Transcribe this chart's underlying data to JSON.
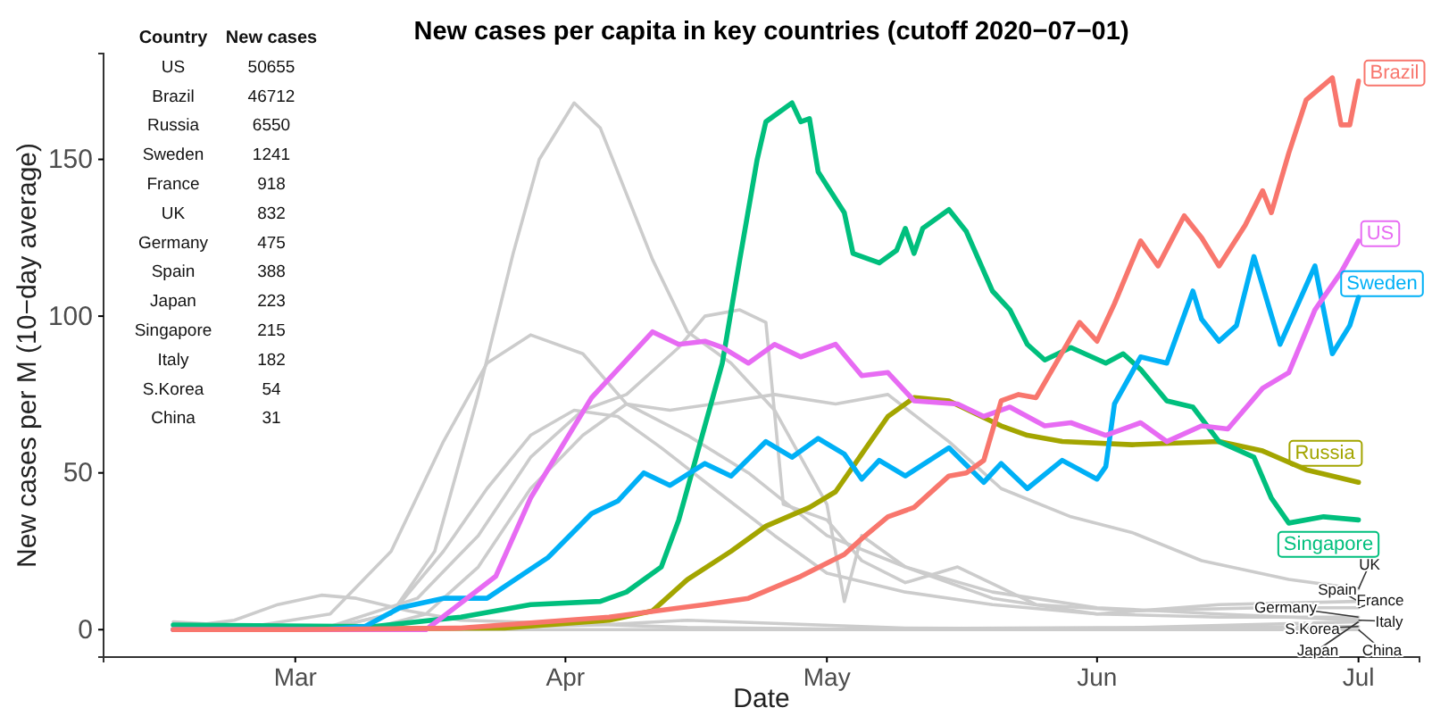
{
  "chart_data": {
    "type": "line",
    "title": "New cases per capita in key countries (cutoff 2020−07−01)",
    "xlabel": "Date",
    "ylabel": "New cases per M (10−day average)",
    "xlim": [
      "2020-02-08",
      "2020-07-08"
    ],
    "xticks": [
      {
        "value": "2020-03-01",
        "label": "Mar"
      },
      {
        "value": "2020-04-01",
        "label": "Apr"
      },
      {
        "value": "2020-05-01",
        "label": "May"
      },
      {
        "value": "2020-06-01",
        "label": "Jun"
      },
      {
        "value": "2020-07-01",
        "label": "Jul"
      }
    ],
    "ylim": [
      -8.75,
      183.75
    ],
    "yticks": [
      0,
      50,
      100,
      150
    ],
    "grid": false,
    "annotations": [
      "Country",
      "New cases",
      "US",
      "50655",
      "Brazil",
      "46712",
      "Russia",
      "6550",
      "Sweden",
      "1241",
      "France",
      "918",
      "UK",
      "832",
      "Germany",
      "475",
      "Spain",
      "388",
      "Japan",
      "223",
      "Singapore",
      "215",
      "Italy",
      "182",
      "S.Korea",
      "54",
      "China",
      "31"
    ],
    "series": [
      {
        "name": "Spain",
        "color": "#cccccc",
        "x": [
          "2020-02-16",
          "2020-03-05",
          "2020-03-12",
          "2020-03-17",
          "2020-03-22",
          "2020-03-26",
          "2020-03-29",
          "2020-04-02",
          "2020-04-05",
          "2020-04-08",
          "2020-04-11",
          "2020-04-15",
          "2020-04-20",
          "2020-04-25",
          "2020-05-01",
          "2020-05-03",
          "2020-05-05",
          "2020-05-10",
          "2020-05-20",
          "2020-06-01",
          "2020-06-15",
          "2020-07-01"
        ],
        "values": [
          0,
          0.5,
          5,
          25,
          75,
          120,
          150,
          168,
          160,
          139,
          118,
          95,
          85,
          70,
          40,
          9,
          30,
          20,
          10,
          5,
          8,
          9
        ]
      },
      {
        "name": "Italy",
        "color": "#cccccc",
        "x": [
          "2020-02-16",
          "2020-02-25",
          "2020-03-05",
          "2020-03-12",
          "2020-03-18",
          "2020-03-23",
          "2020-03-28",
          "2020-04-03",
          "2020-04-08",
          "2020-04-15",
          "2020-04-22",
          "2020-05-01",
          "2020-05-10",
          "2020-05-20",
          "2020-06-01",
          "2020-06-15",
          "2020-07-01"
        ],
        "values": [
          0,
          1,
          5,
          25,
          60,
          85,
          94,
          88,
          72,
          62,
          50,
          30,
          20,
          12,
          7,
          5,
          3
        ]
      },
      {
        "name": "France",
        "color": "#cccccc",
        "x": [
          "2020-02-16",
          "2020-03-05",
          "2020-03-15",
          "2020-03-22",
          "2020-03-28",
          "2020-04-03",
          "2020-04-08",
          "2020-04-12",
          "2020-04-14",
          "2020-04-17",
          "2020-04-21",
          "2020-04-24",
          "2020-04-26",
          "2020-05-01",
          "2020-05-05",
          "2020-05-10",
          "2020-05-16",
          "2020-05-25",
          "2020-06-05",
          "2020-06-20",
          "2020-07-01"
        ],
        "values": [
          0,
          1,
          10,
          30,
          55,
          70,
          75,
          85,
          90,
          100,
          102,
          98,
          40,
          35,
          22,
          15,
          20,
          8,
          6,
          7,
          7
        ]
      },
      {
        "name": "Germany",
        "color": "#cccccc",
        "x": [
          "2020-02-16",
          "2020-03-05",
          "2020-03-12",
          "2020-03-18",
          "2020-03-23",
          "2020-03-28",
          "2020-04-02",
          "2020-04-07",
          "2020-04-12",
          "2020-04-18",
          "2020-04-25",
          "2020-05-01",
          "2020-05-10",
          "2020-05-20",
          "2020-06-01",
          "2020-06-15",
          "2020-07-01"
        ],
        "values": [
          0,
          0.5,
          5,
          25,
          45,
          62,
          70,
          68,
          58,
          45,
          30,
          18,
          12,
          8,
          5,
          4,
          4
        ]
      },
      {
        "name": "UK",
        "color": "#cccccc",
        "x": [
          "2020-02-16",
          "2020-03-10",
          "2020-03-16",
          "2020-03-22",
          "2020-03-28",
          "2020-04-03",
          "2020-04-08",
          "2020-04-13",
          "2020-04-18",
          "2020-04-25",
          "2020-05-02",
          "2020-05-08",
          "2020-05-15",
          "2020-05-21",
          "2020-05-29",
          "2020-06-05",
          "2020-06-13",
          "2020-06-23",
          "2020-07-01"
        ],
        "values": [
          0,
          0.5,
          5,
          20,
          45,
          62,
          72,
          70,
          72,
          75,
          72,
          75,
          60,
          45,
          36,
          31,
          22,
          16,
          13
        ]
      },
      {
        "name": "S.Korea",
        "color": "#cccccc",
        "x": [
          "2020-02-16",
          "2020-02-23",
          "2020-02-28",
          "2020-03-04",
          "2020-03-08",
          "2020-03-14",
          "2020-03-20",
          "2020-04-01",
          "2020-04-15",
          "2020-05-01",
          "2020-06-01",
          "2020-07-01"
        ],
        "values": [
          0.5,
          3,
          8,
          11,
          10,
          6,
          3,
          2,
          0.7,
          0.2,
          0.6,
          1
        ]
      },
      {
        "name": "Japan",
        "color": "#cccccc",
        "x": [
          "2020-02-16",
          "2020-03-15",
          "2020-04-05",
          "2020-04-15",
          "2020-04-25",
          "2020-05-10",
          "2020-06-01",
          "2020-07-01"
        ],
        "values": [
          0,
          0.3,
          1.5,
          3,
          2,
          0.5,
          0.3,
          2.5
        ]
      },
      {
        "name": "China",
        "color": "#cccccc",
        "x": [
          "2020-02-16",
          "2020-02-22",
          "2020-03-01",
          "2020-03-15",
          "2020-07-01"
        ],
        "values": [
          2.5,
          1.5,
          0.4,
          0,
          0
        ]
      },
      {
        "name": "Russia",
        "color": "#a3a500",
        "x": [
          "2020-02-16",
          "2020-03-25",
          "2020-04-06",
          "2020-04-11",
          "2020-04-15",
          "2020-04-20",
          "2020-04-24",
          "2020-04-29",
          "2020-05-02",
          "2020-05-05",
          "2020-05-08",
          "2020-05-11",
          "2020-05-15",
          "2020-05-21",
          "2020-05-24",
          "2020-05-28",
          "2020-06-05",
          "2020-06-15",
          "2020-06-20",
          "2020-06-25",
          "2020-07-01"
        ],
        "values": [
          0,
          0.5,
          3,
          6,
          16,
          25,
          33,
          39,
          44,
          56,
          68,
          74,
          73,
          65,
          62,
          60,
          59,
          60,
          57,
          51,
          47
        ]
      },
      {
        "name": "Singapore",
        "color": "#00bf7d",
        "x": [
          "2020-02-16",
          "2020-03-10",
          "2020-03-20",
          "2020-03-28",
          "2020-04-05",
          "2020-04-08",
          "2020-04-12",
          "2020-04-14",
          "2020-04-16",
          "2020-04-19",
          "2020-04-21",
          "2020-04-23",
          "2020-04-24",
          "2020-04-27",
          "2020-04-28",
          "2020-04-29",
          "2020-04-30",
          "2020-05-03",
          "2020-05-04",
          "2020-05-07",
          "2020-05-09",
          "2020-05-10",
          "2020-05-11",
          "2020-05-12",
          "2020-05-15",
          "2020-05-17",
          "2020-05-20",
          "2020-05-22",
          "2020-05-24",
          "2020-05-26",
          "2020-05-29",
          "2020-06-02",
          "2020-06-04",
          "2020-06-06",
          "2020-06-09",
          "2020-06-12",
          "2020-06-15",
          "2020-06-19",
          "2020-06-21",
          "2020-06-23",
          "2020-06-27",
          "2020-07-01"
        ],
        "values": [
          1.5,
          1,
          4,
          8,
          9,
          12,
          20,
          35,
          55,
          85,
          118,
          150,
          162,
          168,
          162,
          163,
          146,
          133,
          120,
          117,
          121,
          128,
          120,
          128,
          134,
          127,
          108,
          102,
          91,
          86,
          90,
          85,
          88,
          83,
          73,
          71,
          60,
          55,
          42,
          34,
          36,
          35
        ]
      },
      {
        "name": "Sweden",
        "color": "#00b0f6",
        "x": [
          "2020-02-16",
          "2020-03-04",
          "2020-03-09",
          "2020-03-13",
          "2020-03-18",
          "2020-03-23",
          "2020-03-30",
          "2020-04-04",
          "2020-04-07",
          "2020-04-10",
          "2020-04-13",
          "2020-04-17",
          "2020-04-20",
          "2020-04-24",
          "2020-04-27",
          "2020-04-30",
          "2020-05-03",
          "2020-05-05",
          "2020-05-07",
          "2020-05-10",
          "2020-05-15",
          "2020-05-19",
          "2020-05-21",
          "2020-05-24",
          "2020-05-28",
          "2020-06-01",
          "2020-06-02",
          "2020-06-03",
          "2020-06-06",
          "2020-06-09",
          "2020-06-12",
          "2020-06-13",
          "2020-06-15",
          "2020-06-17",
          "2020-06-19",
          "2020-06-22",
          "2020-06-26",
          "2020-06-28",
          "2020-06-30",
          "2020-07-01"
        ],
        "values": [
          0,
          0,
          1,
          7,
          10,
          10,
          23,
          37,
          41,
          50,
          46,
          53,
          49,
          60,
          55,
          61,
          56,
          48,
          54,
          49,
          58,
          47,
          53,
          45,
          54,
          48,
          52,
          72,
          87,
          85,
          108,
          99,
          92,
          97,
          119,
          91,
          116,
          88,
          97,
          106
        ]
      },
      {
        "name": "US",
        "color": "#e76bf3",
        "x": [
          "2020-02-16",
          "2020-03-16",
          "2020-03-24",
          "2020-03-28",
          "2020-04-04",
          "2020-04-07",
          "2020-04-11",
          "2020-04-14",
          "2020-04-17",
          "2020-04-19",
          "2020-04-22",
          "2020-04-25",
          "2020-04-28",
          "2020-05-02",
          "2020-05-05",
          "2020-05-08",
          "2020-05-11",
          "2020-05-16",
          "2020-05-19",
          "2020-05-22",
          "2020-05-26",
          "2020-05-29",
          "2020-06-02",
          "2020-06-06",
          "2020-06-09",
          "2020-06-13",
          "2020-06-16",
          "2020-06-20",
          "2020-06-23",
          "2020-06-26",
          "2020-06-29",
          "2020-07-01"
        ],
        "values": [
          0,
          0,
          17,
          42,
          74,
          83,
          95,
          91,
          92,
          90,
          85,
          91,
          87,
          91,
          81,
          82,
          73,
          72,
          68,
          71,
          65,
          66,
          62,
          66,
          60,
          65,
          64,
          77,
          82,
          102,
          114,
          124
        ]
      },
      {
        "name": "Brazil",
        "color": "#f8766d",
        "x": [
          "2020-02-16",
          "2020-03-01",
          "2020-03-20",
          "2020-04-06",
          "2020-04-17",
          "2020-04-22",
          "2020-04-28",
          "2020-05-03",
          "2020-05-05",
          "2020-05-08",
          "2020-05-11",
          "2020-05-15",
          "2020-05-17",
          "2020-05-19",
          "2020-05-21",
          "2020-05-23",
          "2020-05-25",
          "2020-05-30",
          "2020-06-01",
          "2020-06-03",
          "2020-06-06",
          "2020-06-08",
          "2020-06-11",
          "2020-06-13",
          "2020-06-15",
          "2020-06-18",
          "2020-06-20",
          "2020-06-21",
          "2020-06-23",
          "2020-06-25",
          "2020-06-28",
          "2020-06-29",
          "2020-06-30",
          "2020-07-01"
        ],
        "values": [
          0,
          0,
          0.5,
          4,
          8,
          10,
          17,
          24,
          29,
          36,
          39,
          49,
          50,
          54,
          73,
          75,
          74,
          98,
          92,
          104,
          124,
          116,
          132,
          125,
          116,
          129,
          140,
          133,
          152,
          169,
          176,
          161,
          161,
          175
        ]
      }
    ]
  }
}
